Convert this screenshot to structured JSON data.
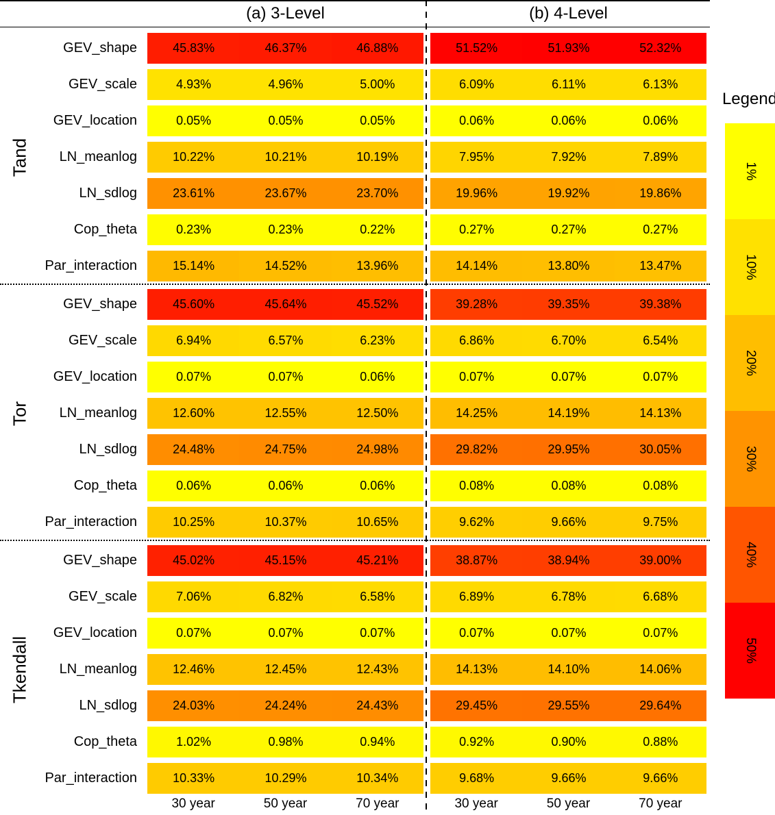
{
  "figure": {
    "panel_titles": [
      "(a) 3-Level",
      "(b) 4-Level"
    ]
  },
  "legend": {
    "title": "Legend",
    "bands": [
      {
        "label": "1%",
        "color": "#FFFF00"
      },
      {
        "label": "10%",
        "color": "#FFE100"
      },
      {
        "label": "20%",
        "color": "#FFBE00"
      },
      {
        "label": "30%",
        "color": "#FF9300"
      },
      {
        "label": "40%",
        "color": "#FF5500"
      },
      {
        "label": "50%",
        "color": "#FF0000"
      }
    ]
  },
  "chart_data": {
    "type": "heatmap",
    "unit": "%",
    "panels": [
      "3-Level",
      "4-Level"
    ],
    "columns": [
      "30 year",
      "50 year",
      "70 year"
    ],
    "row_labels": [
      "GEV_shape",
      "GEV_scale",
      "GEV_location",
      "LN_meanlog",
      "LN_sdlog",
      "Cop_theta",
      "Par_interaction"
    ],
    "color_scale": {
      "min_color": "#FFFF00",
      "max_color": "#FF0000",
      "min_value": 0,
      "max_value": 52
    },
    "groups": [
      {
        "name": "Tand",
        "level3": [
          [
            45.83,
            46.37,
            46.88
          ],
          [
            4.93,
            4.96,
            5.0
          ],
          [
            0.05,
            0.05,
            0.05
          ],
          [
            10.22,
            10.21,
            10.19
          ],
          [
            23.61,
            23.67,
            23.7
          ],
          [
            0.23,
            0.23,
            0.22
          ],
          [
            15.14,
            14.52,
            13.96
          ]
        ],
        "level4": [
          [
            51.52,
            51.93,
            52.32
          ],
          [
            6.09,
            6.11,
            6.13
          ],
          [
            0.06,
            0.06,
            0.06
          ],
          [
            7.95,
            7.92,
            7.89
          ],
          [
            19.96,
            19.92,
            19.86
          ],
          [
            0.27,
            0.27,
            0.27
          ],
          [
            14.14,
            13.8,
            13.47
          ]
        ]
      },
      {
        "name": "Tor",
        "level3": [
          [
            45.6,
            45.64,
            45.52
          ],
          [
            6.94,
            6.57,
            6.23
          ],
          [
            0.07,
            0.07,
            0.06
          ],
          [
            12.6,
            12.55,
            12.5
          ],
          [
            24.48,
            24.75,
            24.98
          ],
          [
            0.06,
            0.06,
            0.06
          ],
          [
            10.25,
            10.37,
            10.65
          ]
        ],
        "level4": [
          [
            39.28,
            39.35,
            39.38
          ],
          [
            6.86,
            6.7,
            6.54
          ],
          [
            0.07,
            0.07,
            0.07
          ],
          [
            14.25,
            14.19,
            14.13
          ],
          [
            29.82,
            29.95,
            30.05
          ],
          [
            0.08,
            0.08,
            0.08
          ],
          [
            9.62,
            9.66,
            9.75
          ]
        ]
      },
      {
        "name": "Tkendall",
        "level3": [
          [
            45.02,
            45.15,
            45.21
          ],
          [
            7.06,
            6.82,
            6.58
          ],
          [
            0.07,
            0.07,
            0.07
          ],
          [
            12.46,
            12.45,
            12.43
          ],
          [
            24.03,
            24.24,
            24.43
          ],
          [
            1.02,
            0.98,
            0.94
          ],
          [
            10.33,
            10.29,
            10.34
          ]
        ],
        "level4": [
          [
            38.87,
            38.94,
            39.0
          ],
          [
            6.89,
            6.78,
            6.68
          ],
          [
            0.07,
            0.07,
            0.07
          ],
          [
            14.13,
            14.1,
            14.06
          ],
          [
            29.45,
            29.55,
            29.64
          ],
          [
            0.92,
            0.9,
            0.88
          ],
          [
            9.68,
            9.66,
            9.66
          ]
        ]
      }
    ]
  }
}
